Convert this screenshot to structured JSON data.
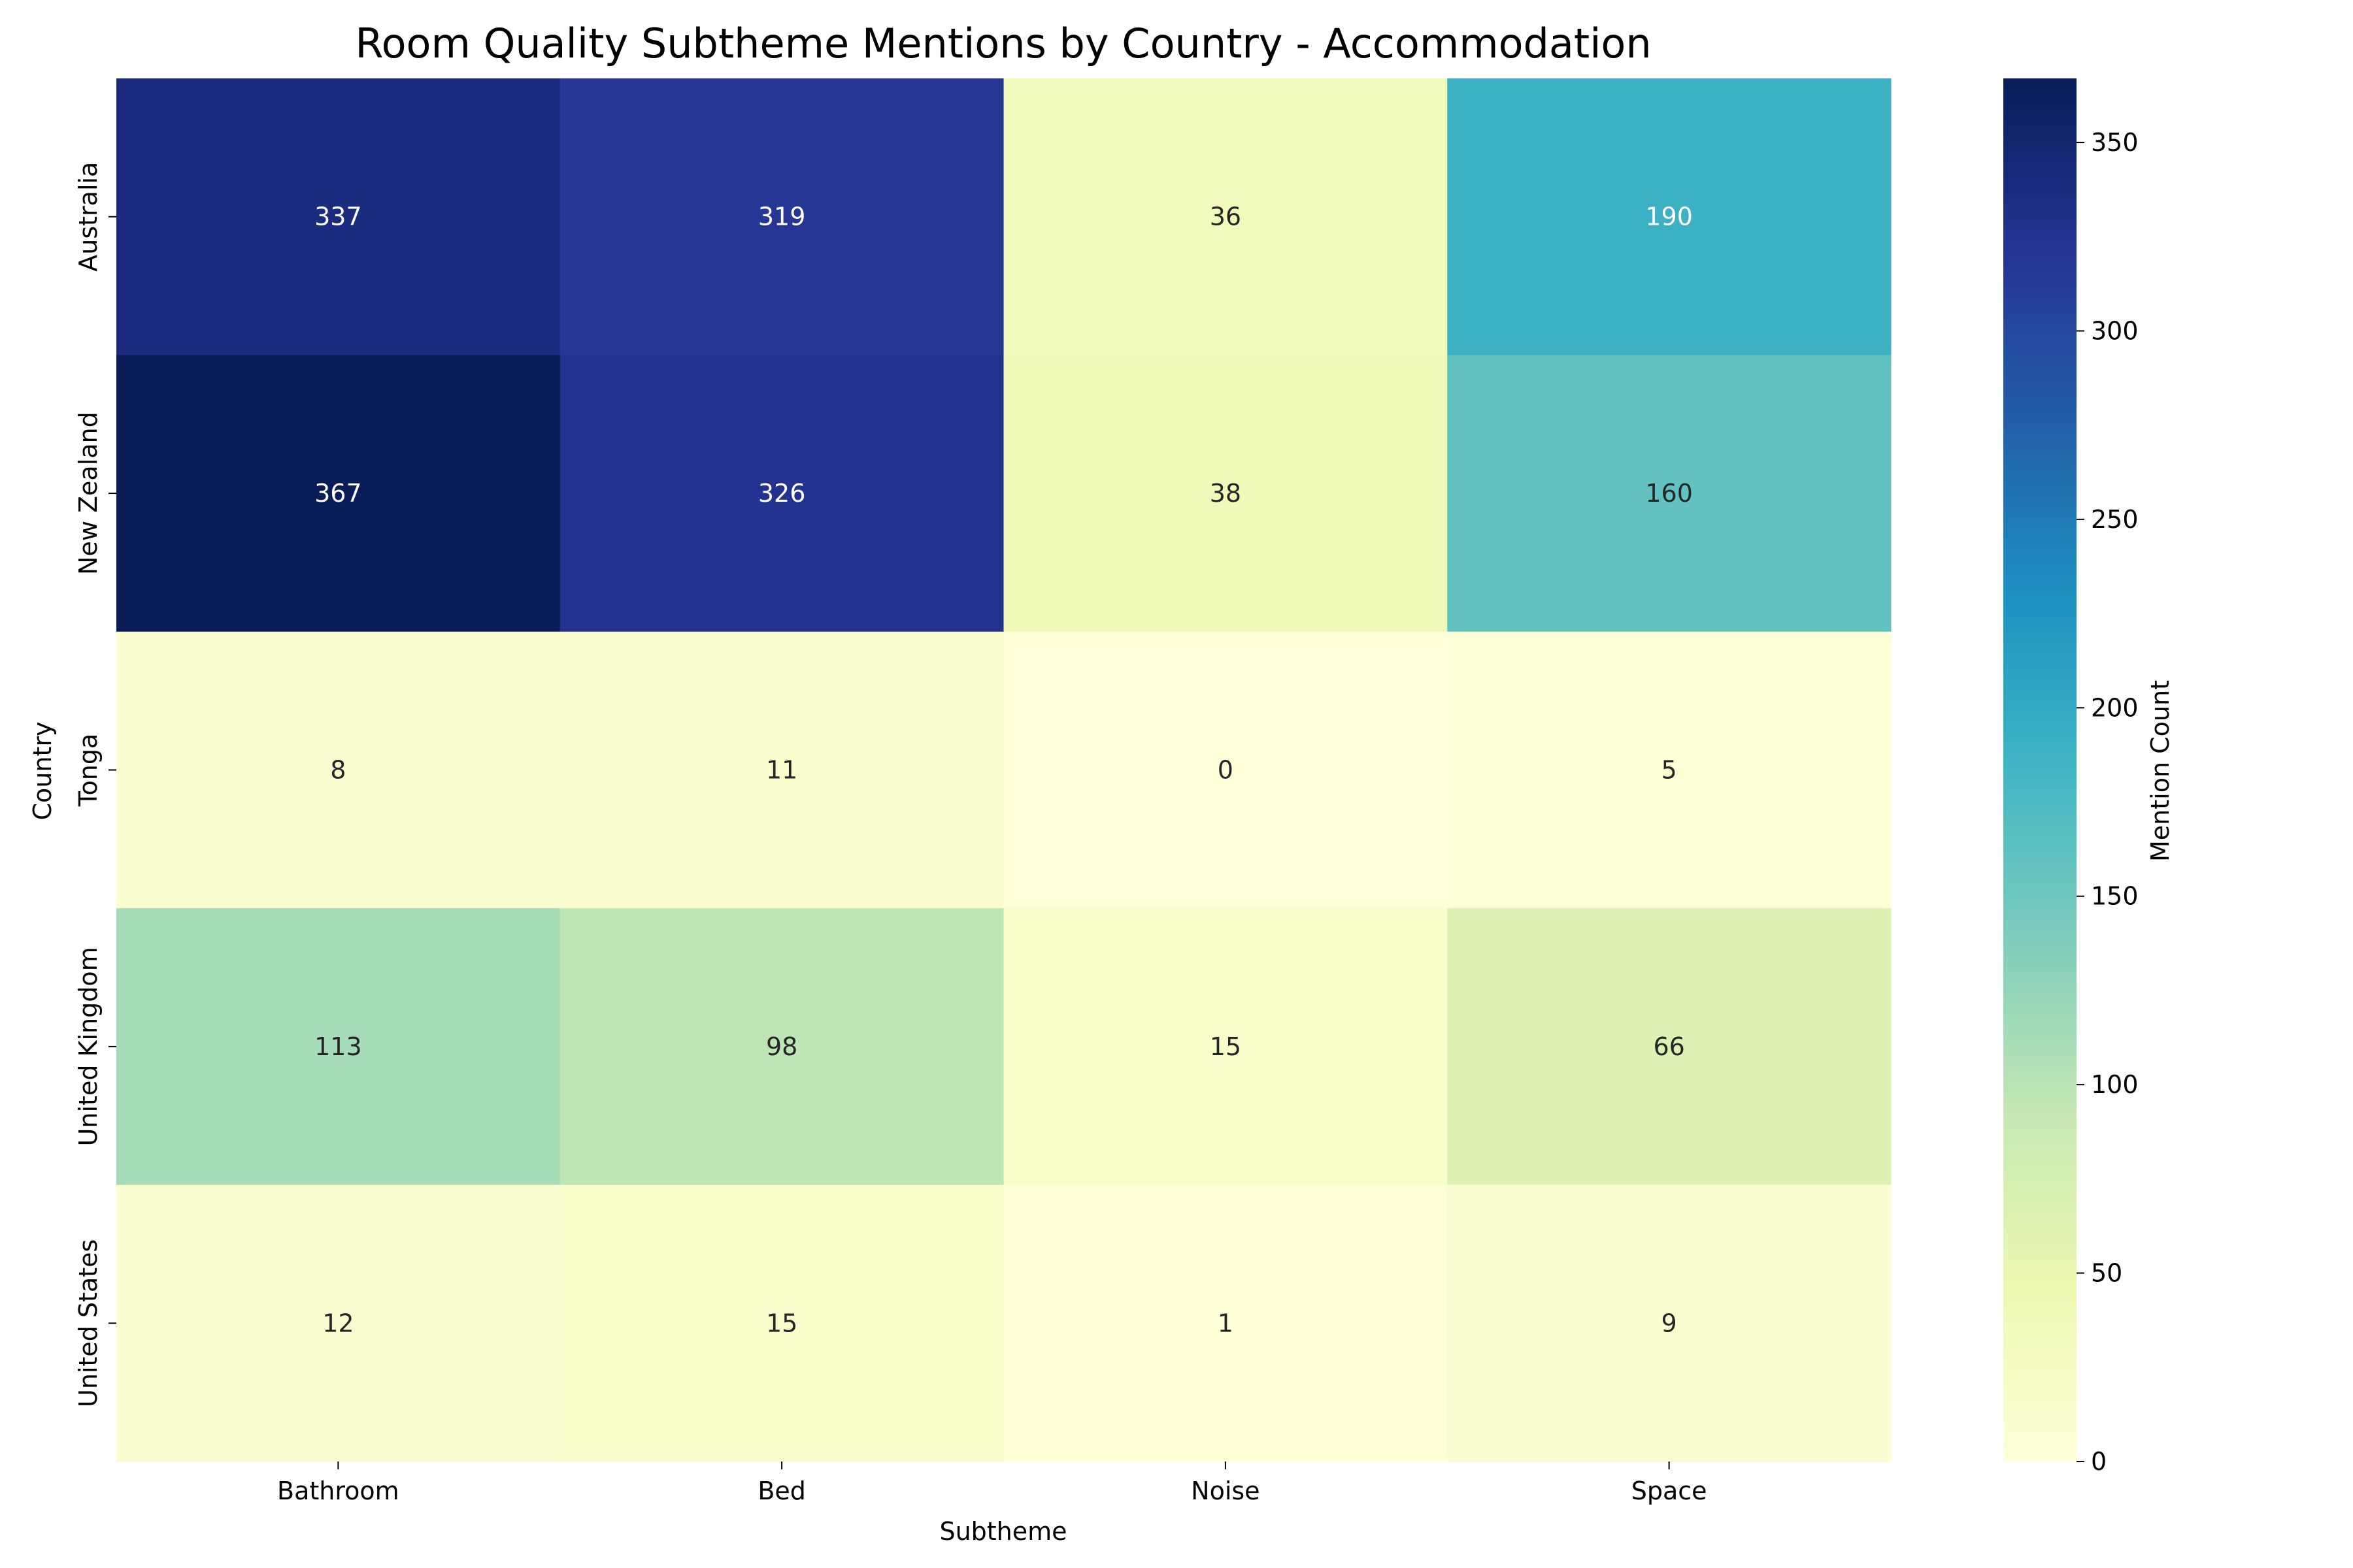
{
  "chart_data": {
    "type": "heatmap",
    "title": "Room Quality Subtheme Mentions by Country - Accommodation",
    "xlabel": "Subtheme",
    "ylabel": "Country",
    "colorbar_label": "Mention Count",
    "colormap": "YlGnBu",
    "x_categories": [
      "Bathroom",
      "Bed",
      "Noise",
      "Space"
    ],
    "y_categories": [
      "Australia",
      "New Zealand",
      "Tonga",
      "United Kingdom",
      "United States"
    ],
    "values": [
      [
        337,
        319,
        36,
        190
      ],
      [
        367,
        326,
        38,
        160
      ],
      [
        8,
        11,
        0,
        5
      ],
      [
        113,
        98,
        15,
        66
      ],
      [
        12,
        15,
        1,
        9
      ]
    ],
    "value_range": [
      0,
      367
    ],
    "colorbar_ticks": [
      0,
      50,
      100,
      150,
      200,
      250,
      300,
      350
    ]
  }
}
